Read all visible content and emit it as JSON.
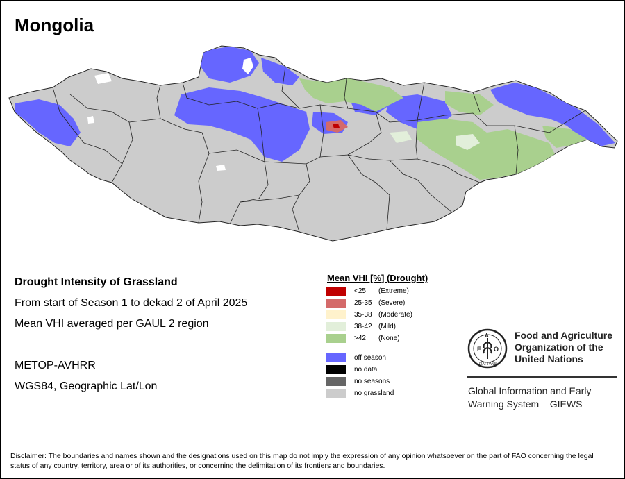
{
  "map": {
    "title": "Mongolia"
  },
  "info": {
    "heading": "Drought Intensity of Grassland",
    "period": "From start of Season 1 to dekad 2 of April 2025",
    "method": "Mean VHI averaged per GAUL 2 region",
    "sensor": "METOP-AVHRR",
    "projection": "WGS84, Geographic Lat/Lon"
  },
  "legend": {
    "title": "Mean VHI [%] (Drought)",
    "classes": [
      {
        "range": "<25",
        "label": "(Extreme)",
        "color": "#c00000"
      },
      {
        "range": "25-35",
        "label": "(Severe)",
        "color": "#d46a6a"
      },
      {
        "range": "35-38",
        "label": "(Moderate)",
        "color": "#fff2cc"
      },
      {
        "range": "38-42",
        "label": "(Mild)",
        "color": "#e2efda"
      },
      {
        "range": ">42",
        "label": "(None)",
        "color": "#a9d08e"
      }
    ],
    "other": [
      {
        "label": "off season",
        "color": "#6666ff"
      },
      {
        "label": "no data",
        "color": "#000000"
      },
      {
        "label": "no seasons",
        "color": "#666666"
      },
      {
        "label": "no grassland",
        "color": "#cccccc"
      }
    ]
  },
  "logo": {
    "org_line1": "Food and Agriculture",
    "org_line2": "Organization of the",
    "org_line3": "United Nations",
    "system_line1": "Global Information and Early",
    "system_line2": "Warning System – GIEWS",
    "emblem_text": "FAO",
    "motto": "FIAT PANIS"
  },
  "disclaimer": "Disclaimer: The boundaries and names shown and the designations used on this map do not imply the expression of any opinion whatsoever on the part of FAO concerning the legal status of any country, territory, area or of its authorities, or concerning the delimitation of its frontiers and boundaries."
}
